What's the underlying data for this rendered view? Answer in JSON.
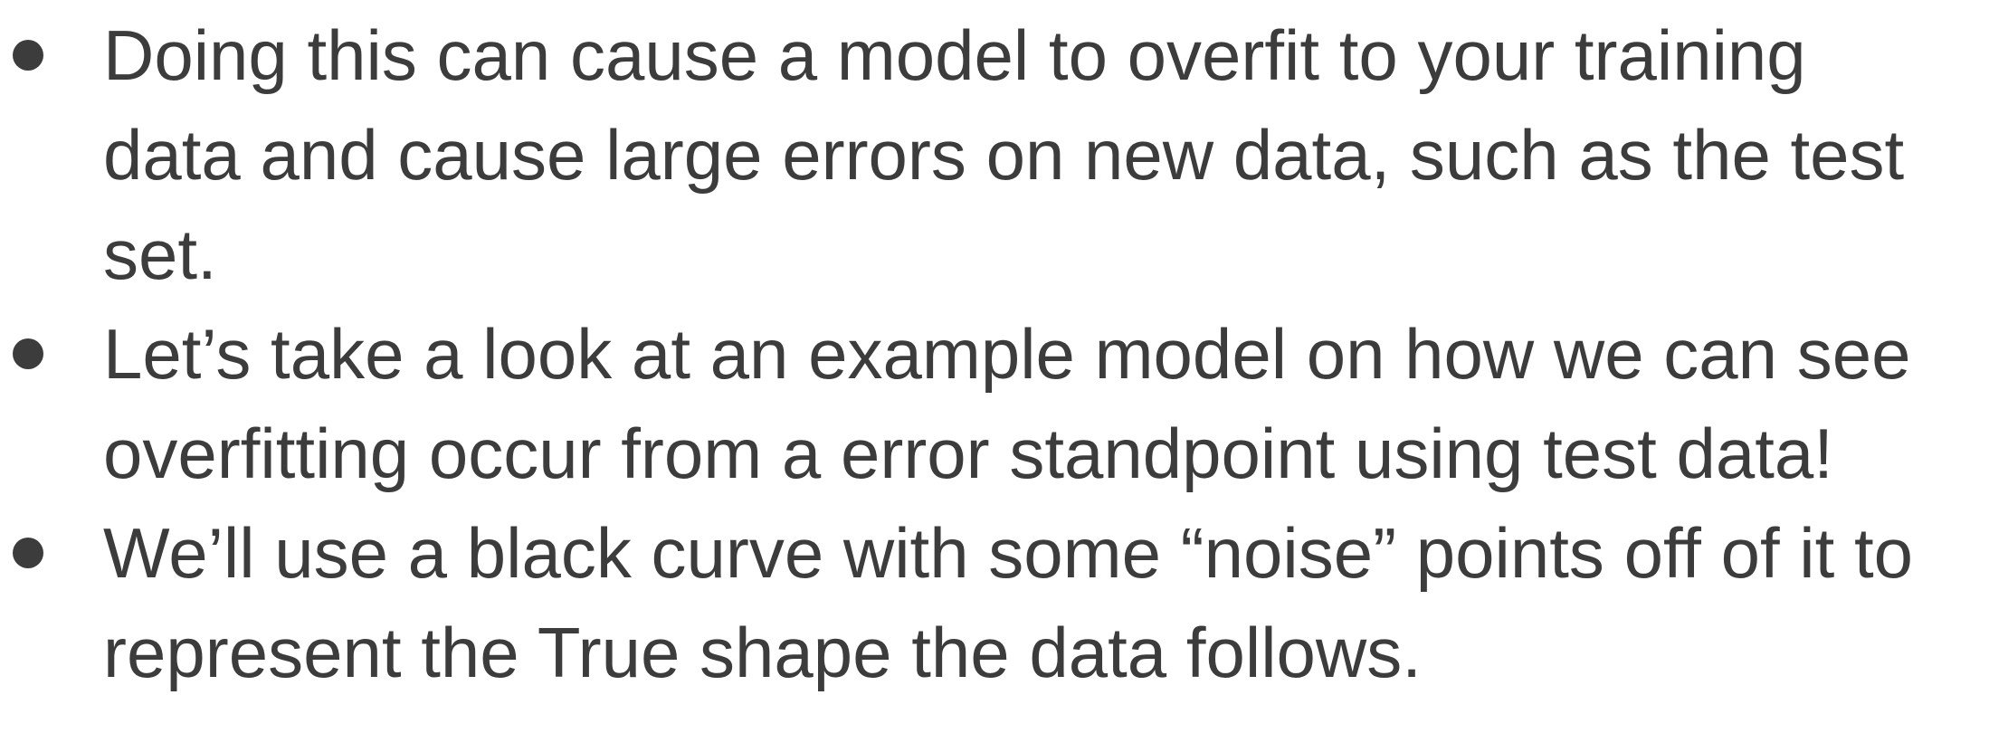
{
  "bullets": [
    {
      "lines": [
        "Doing this can cause a model to overfit to your training",
        "data and cause large errors on new data, such as the test",
        "set."
      ]
    },
    {
      "lines": [
        "Let’s take a look at an example model on how we can see",
        "overfitting occur from a error standpoint using test data!"
      ]
    },
    {
      "lines": [
        "We’ll use a black curve with some “noise” points off of it to",
        "represent the True shape the data follows."
      ]
    }
  ]
}
